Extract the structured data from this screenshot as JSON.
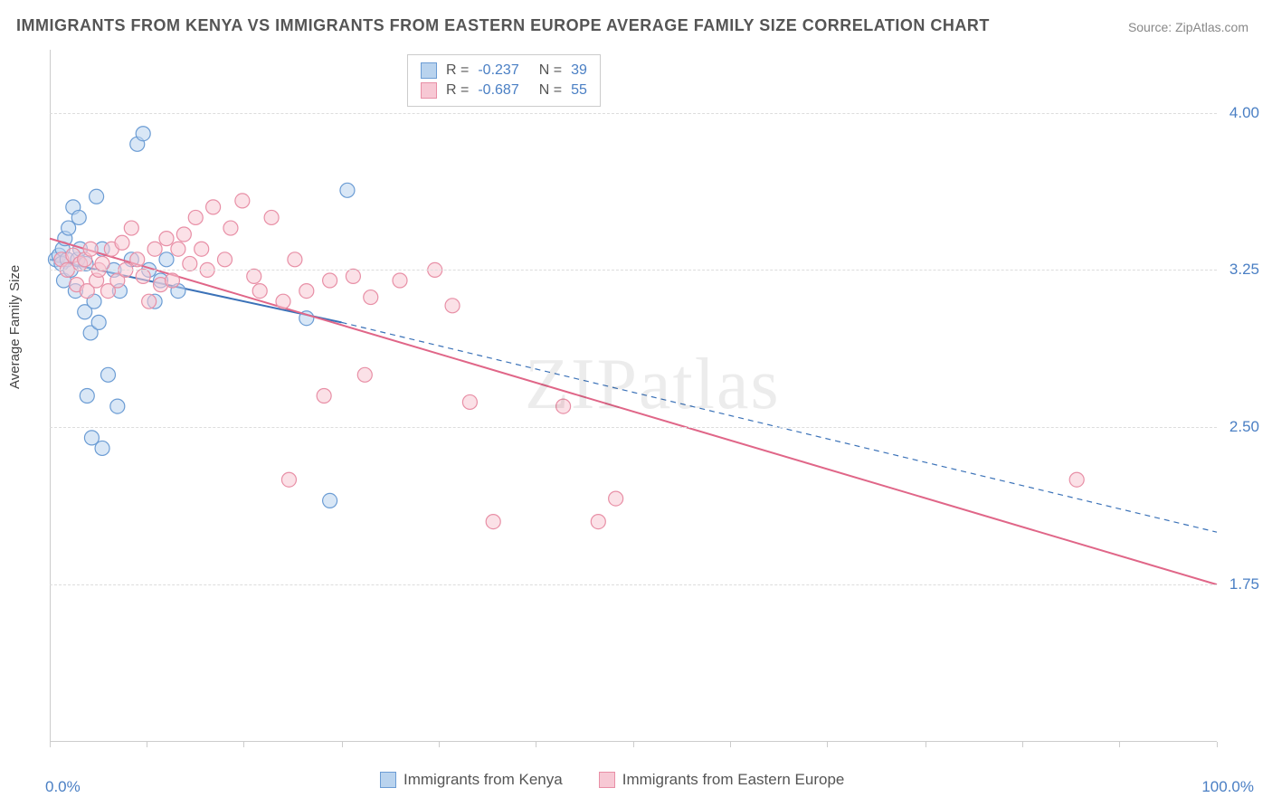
{
  "title": "IMMIGRANTS FROM KENYA VS IMMIGRANTS FROM EASTERN EUROPE AVERAGE FAMILY SIZE CORRELATION CHART",
  "source_label": "Source:",
  "source_name": "ZipAtlas.com",
  "watermark": "ZIPatlas",
  "ylabel": "Average Family Size",
  "chart": {
    "type": "scatter",
    "background_color": "#ffffff",
    "grid_color": "#dddddd",
    "axis_color": "#cccccc",
    "xlim": [
      0,
      100
    ],
    "ylim": [
      1.0,
      4.3
    ],
    "ytick_values": [
      1.75,
      2.5,
      3.25,
      4.0
    ],
    "ytick_labels": [
      "1.75",
      "2.50",
      "3.25",
      "4.00"
    ],
    "xtick_positions": [
      0,
      8.3,
      16.6,
      25,
      33.3,
      41.6,
      50,
      58.3,
      66.6,
      75,
      83.3,
      91.6,
      100
    ],
    "x_left_label": "0.0%",
    "x_right_label": "100.0%",
    "marker_radius": 8,
    "marker_stroke_width": 1.2,
    "line_width": 2,
    "series": [
      {
        "name": "Immigrants from Kenya",
        "fill": "#b9d3ee",
        "stroke": "#6b9cd4",
        "line_color": "#3b72b8",
        "r_value": "-0.237",
        "n_value": "39",
        "trend": {
          "x1": 0,
          "y1": 3.3,
          "x2": 25,
          "y2": 3.0,
          "dash_x2": 100,
          "dash_y2": 2.0
        },
        "points": [
          [
            0.5,
            3.3
          ],
          [
            0.8,
            3.32
          ],
          [
            1.0,
            3.28
          ],
          [
            1.1,
            3.35
          ],
          [
            1.2,
            3.2
          ],
          [
            1.3,
            3.4
          ],
          [
            1.5,
            3.3
          ],
          [
            1.6,
            3.45
          ],
          [
            1.8,
            3.25
          ],
          [
            2.0,
            3.55
          ],
          [
            2.2,
            3.15
          ],
          [
            2.4,
            3.3
          ],
          [
            2.5,
            3.5
          ],
          [
            2.6,
            3.35
          ],
          [
            3.0,
            3.05
          ],
          [
            3.1,
            3.28
          ],
          [
            3.5,
            2.95
          ],
          [
            3.8,
            3.1
          ],
          [
            4.0,
            3.6
          ],
          [
            4.2,
            3.0
          ],
          [
            4.5,
            3.35
          ],
          [
            5.0,
            2.75
          ],
          [
            5.5,
            3.25
          ],
          [
            5.8,
            2.6
          ],
          [
            6.0,
            3.15
          ],
          [
            3.2,
            2.65
          ],
          [
            7.0,
            3.3
          ],
          [
            7.5,
            3.85
          ],
          [
            8.0,
            3.9
          ],
          [
            8.5,
            3.25
          ],
          [
            9.0,
            3.1
          ],
          [
            9.5,
            3.2
          ],
          [
            10.0,
            3.3
          ],
          [
            11.0,
            3.15
          ],
          [
            4.5,
            2.4
          ],
          [
            3.6,
            2.45
          ],
          [
            22.0,
            3.02
          ],
          [
            25.5,
            3.63
          ],
          [
            24.0,
            2.15
          ]
        ]
      },
      {
        "name": "Immigrants from Eastern Europe",
        "fill": "#f7c8d4",
        "stroke": "#e88fa6",
        "line_color": "#e06688",
        "r_value": "-0.687",
        "n_value": "55",
        "trend": {
          "x1": 0,
          "y1": 3.4,
          "x2": 100,
          "y2": 1.75
        },
        "points": [
          [
            1.0,
            3.3
          ],
          [
            1.5,
            3.25
          ],
          [
            2.0,
            3.32
          ],
          [
            2.3,
            3.18
          ],
          [
            2.6,
            3.28
          ],
          [
            3.0,
            3.3
          ],
          [
            3.2,
            3.15
          ],
          [
            3.5,
            3.35
          ],
          [
            4.0,
            3.2
          ],
          [
            4.2,
            3.25
          ],
          [
            4.5,
            3.28
          ],
          [
            5.0,
            3.15
          ],
          [
            5.3,
            3.35
          ],
          [
            5.8,
            3.2
          ],
          [
            6.2,
            3.38
          ],
          [
            6.5,
            3.25
          ],
          [
            7.0,
            3.45
          ],
          [
            7.5,
            3.3
          ],
          [
            8.0,
            3.22
          ],
          [
            8.5,
            3.1
          ],
          [
            9.0,
            3.35
          ],
          [
            9.5,
            3.18
          ],
          [
            10.0,
            3.4
          ],
          [
            10.5,
            3.2
          ],
          [
            11.0,
            3.35
          ],
          [
            11.5,
            3.42
          ],
          [
            12.0,
            3.28
          ],
          [
            12.5,
            3.5
          ],
          [
            13.0,
            3.35
          ],
          [
            13.5,
            3.25
          ],
          [
            14.0,
            3.55
          ],
          [
            15.0,
            3.3
          ],
          [
            15.5,
            3.45
          ],
          [
            16.5,
            3.58
          ],
          [
            17.5,
            3.22
          ],
          [
            18.0,
            3.15
          ],
          [
            19.0,
            3.5
          ],
          [
            20.0,
            3.1
          ],
          [
            21.0,
            3.3
          ],
          [
            22.0,
            3.15
          ],
          [
            24.0,
            3.2
          ],
          [
            26.0,
            3.22
          ],
          [
            27.0,
            2.75
          ],
          [
            27.5,
            3.12
          ],
          [
            30.0,
            3.2
          ],
          [
            33.0,
            3.25
          ],
          [
            34.5,
            3.08
          ],
          [
            36.0,
            2.62
          ],
          [
            38.0,
            2.05
          ],
          [
            20.5,
            2.25
          ],
          [
            23.5,
            2.65
          ],
          [
            44.0,
            2.6
          ],
          [
            48.5,
            2.16
          ],
          [
            47.0,
            2.05
          ],
          [
            88.0,
            2.25
          ]
        ]
      }
    ]
  },
  "legend_bottom": [
    {
      "label": "Immigrants from Kenya",
      "fill": "#b9d3ee",
      "stroke": "#6b9cd4"
    },
    {
      "label": "Immigrants from Eastern Europe",
      "fill": "#f7c8d4",
      "stroke": "#e88fa6"
    }
  ]
}
